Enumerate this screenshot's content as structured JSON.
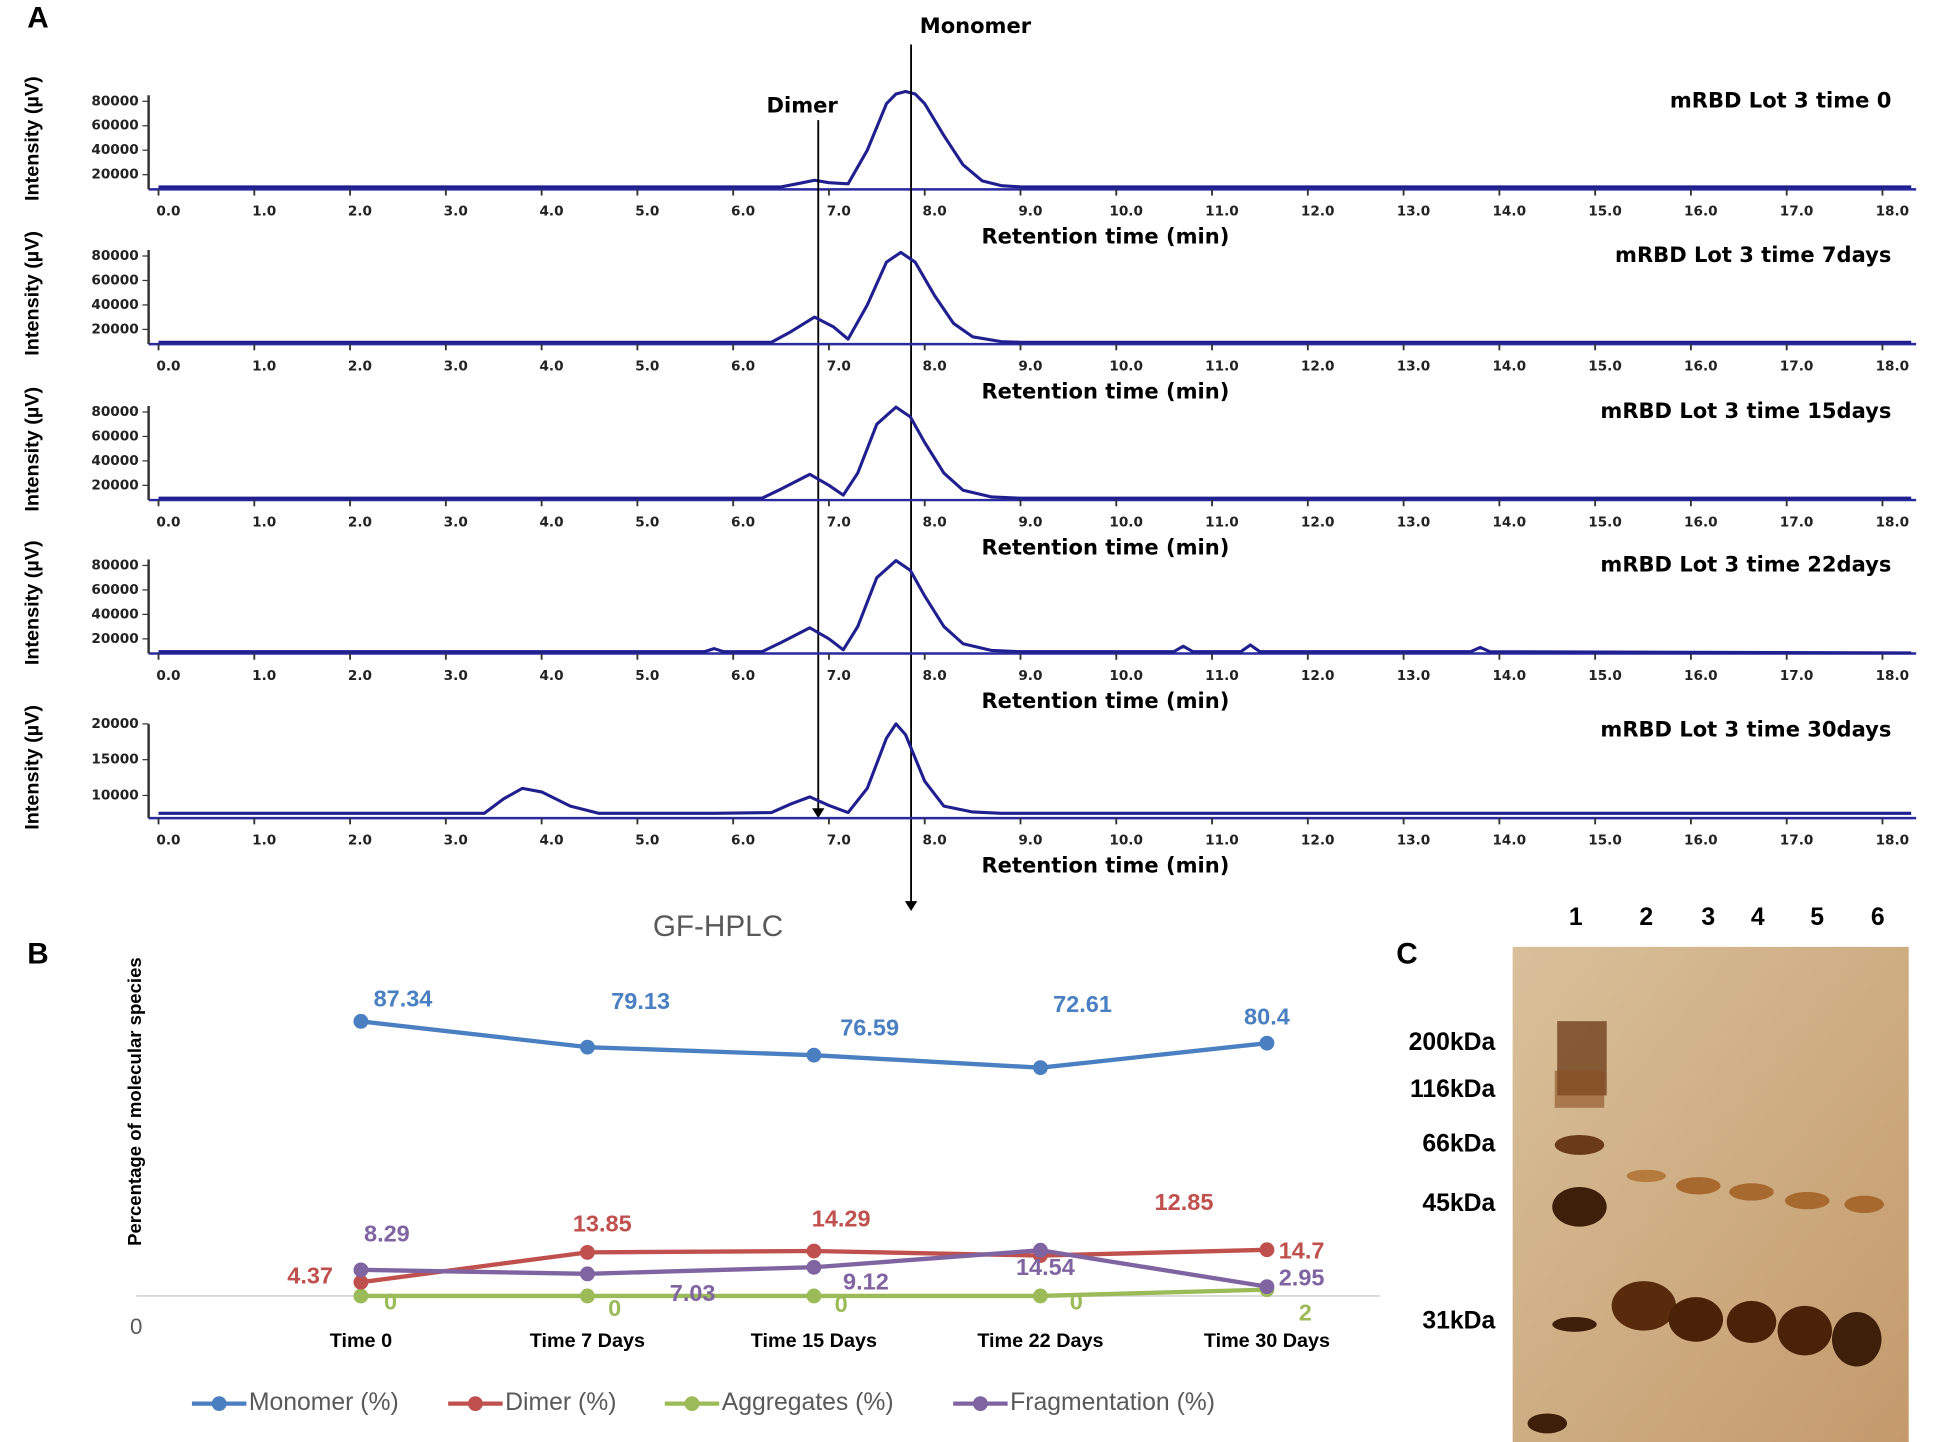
{
  "panel_labels": [
    "A",
    "B",
    "C"
  ],
  "chart_data": [
    {
      "type": "line",
      "title": "mRBD Lot 3 time 0",
      "xlabel": "Retention time (min)",
      "ylabel": "Intensity (µV)",
      "color": "#1f1f8f",
      "annotations": [
        "Dimer",
        "Monomer"
      ],
      "x": [
        0,
        6.5,
        6.7,
        6.85,
        7.0,
        7.2,
        7.4,
        7.6,
        7.7,
        7.8,
        7.9,
        8.0,
        8.2,
        8.4,
        8.6,
        8.8,
        9.0,
        18.3
      ],
      "values": [
        10000,
        10000,
        13000,
        15500,
        13500,
        12500,
        40000,
        78000,
        86000,
        88000,
        86000,
        78000,
        52000,
        28000,
        15000,
        11000,
        10000,
        10000
      ],
      "xlim": [
        0,
        18.3
      ],
      "ylim": [
        9000,
        95000
      ],
      "xticks": [
        {
          "value": 0,
          "label": "0.0"
        },
        {
          "value": 1,
          "label": "1.0"
        },
        {
          "value": 2,
          "label": "2.0"
        },
        {
          "value": 3,
          "label": "3.0"
        },
        {
          "value": 4,
          "label": "4.0"
        },
        {
          "value": 5,
          "label": "5.0"
        },
        {
          "value": 6,
          "label": "6.0"
        },
        {
          "value": 7,
          "label": "7.0"
        },
        {
          "value": 8,
          "label": "8.0"
        },
        {
          "value": 9,
          "label": "9.0"
        },
        {
          "value": 10,
          "label": "10.0"
        },
        {
          "value": 11,
          "label": "11.0"
        },
        {
          "value": 12,
          "label": "12.0"
        },
        {
          "value": 13,
          "label": "13.0"
        },
        {
          "value": 14,
          "label": "14.0"
        },
        {
          "value": 15,
          "label": "15.0"
        },
        {
          "value": 16,
          "label": "16.0"
        },
        {
          "value": 17,
          "label": "17.0"
        },
        {
          "value": 18,
          "label": "18.0"
        }
      ],
      "yticks": [
        20000,
        40000,
        60000,
        80000
      ]
    },
    {
      "type": "line",
      "title": "mRBD Lot 3 time 7days",
      "xlabel": "Retention time (min)",
      "ylabel": "Intensity (µV)",
      "color": "#1f1f8f",
      "x": [
        0,
        6.4,
        6.6,
        6.85,
        7.05,
        7.2,
        7.4,
        7.6,
        7.75,
        7.9,
        8.1,
        8.3,
        8.5,
        8.8,
        9.0,
        18.3
      ],
      "values": [
        9500,
        9500,
        18000,
        30000,
        22000,
        12000,
        40000,
        75000,
        83000,
        75000,
        48000,
        25000,
        14000,
        10000,
        9500,
        9500
      ],
      "xlim": [
        0,
        18.3
      ],
      "ylim": [
        9000,
        95000
      ],
      "xticks": [
        {
          "value": 0,
          "label": "0.0"
        },
        {
          "value": 1,
          "label": "1.0"
        },
        {
          "value": 2,
          "label": "2.0"
        },
        {
          "value": 3,
          "label": "3.0"
        },
        {
          "value": 4,
          "label": "4.0"
        },
        {
          "value": 5,
          "label": "5.0"
        },
        {
          "value": 6,
          "label": "6.0"
        },
        {
          "value": 7,
          "label": "7.0"
        },
        {
          "value": 8,
          "label": "8.0"
        },
        {
          "value": 9,
          "label": "9.0"
        },
        {
          "value": 10,
          "label": "10.0"
        },
        {
          "value": 11,
          "label": "11.0"
        },
        {
          "value": 12,
          "label": "12.0"
        },
        {
          "value": 13,
          "label": "13.0"
        },
        {
          "value": 14,
          "label": "14.0"
        },
        {
          "value": 15,
          "label": "15.0"
        },
        {
          "value": 16,
          "label": "16.0"
        },
        {
          "value": 17,
          "label": "17.0"
        },
        {
          "value": 18,
          "label": "18.0"
        }
      ],
      "yticks": [
        20000,
        40000,
        60000,
        80000
      ]
    },
    {
      "type": "line",
      "title": "mRBD Lot 3 time 15days",
      "xlabel": "Retention time (min)",
      "ylabel": "Intensity (µV)",
      "color": "#1f1f8f",
      "x": [
        0,
        6.3,
        6.5,
        6.8,
        7.0,
        7.15,
        7.3,
        7.5,
        7.7,
        7.85,
        8.0,
        8.2,
        8.4,
        8.7,
        9.0,
        18.3
      ],
      "values": [
        9500,
        9500,
        17000,
        29000,
        20000,
        12000,
        30000,
        70000,
        84000,
        76000,
        55000,
        30000,
        16000,
        10500,
        9500,
        9500
      ],
      "xlim": [
        0,
        18.3
      ],
      "ylim": [
        9000,
        95000
      ],
      "xticks": [
        {
          "value": 0,
          "label": "0.0"
        },
        {
          "value": 1,
          "label": "1.0"
        },
        {
          "value": 2,
          "label": "2.0"
        },
        {
          "value": 3,
          "label": "3.0"
        },
        {
          "value": 4,
          "label": "4.0"
        },
        {
          "value": 5,
          "label": "5.0"
        },
        {
          "value": 6,
          "label": "6.0"
        },
        {
          "value": 7,
          "label": "7.0"
        },
        {
          "value": 8,
          "label": "8.0"
        },
        {
          "value": 9,
          "label": "9.0"
        },
        {
          "value": 10,
          "label": "10.0"
        },
        {
          "value": 11,
          "label": "11.0"
        },
        {
          "value": 12,
          "label": "12.0"
        },
        {
          "value": 13,
          "label": "13.0"
        },
        {
          "value": 14,
          "label": "14.0"
        },
        {
          "value": 15,
          "label": "15.0"
        },
        {
          "value": 16,
          "label": "16.0"
        },
        {
          "value": 17,
          "label": "17.0"
        },
        {
          "value": 18,
          "label": "18.0"
        }
      ],
      "yticks": [
        20000,
        40000,
        60000,
        80000
      ]
    },
    {
      "type": "line",
      "title": "mRBD Lot 3 time 22days",
      "xlabel": "Retention time (min)",
      "ylabel": "Intensity (µV)",
      "color": "#1f1f8f",
      "x": [
        0,
        5.7,
        5.8,
        5.9,
        6.3,
        6.5,
        6.8,
        7.0,
        7.15,
        7.3,
        7.5,
        7.7,
        7.85,
        8.0,
        8.2,
        8.4,
        8.7,
        9.0,
        10.6,
        10.7,
        10.8,
        11.3,
        11.4,
        11.5,
        13.7,
        13.8,
        13.9,
        18.3
      ],
      "values": [
        9500,
        9500,
        12000,
        9500,
        9500,
        17000,
        29000,
        20000,
        11000,
        30000,
        70000,
        84000,
        76000,
        55000,
        30000,
        16000,
        10500,
        9500,
        9500,
        14000,
        9500,
        9500,
        15000,
        9500,
        9500,
        13000,
        9500,
        8500
      ],
      "xlim": [
        0,
        18.3
      ],
      "ylim": [
        9000,
        95000
      ],
      "xticks": [
        {
          "value": 0,
          "label": "0.0"
        },
        {
          "value": 1,
          "label": "1.0"
        },
        {
          "value": 2,
          "label": "2.0"
        },
        {
          "value": 3,
          "label": "3.0"
        },
        {
          "value": 4,
          "label": "4.0"
        },
        {
          "value": 5,
          "label": "5.0"
        },
        {
          "value": 6,
          "label": "6.0"
        },
        {
          "value": 7,
          "label": "7.0"
        },
        {
          "value": 8,
          "label": "8.0"
        },
        {
          "value": 9,
          "label": "9.0"
        },
        {
          "value": 10,
          "label": "10.0"
        },
        {
          "value": 11,
          "label": "11.0"
        },
        {
          "value": 12,
          "label": "12.0"
        },
        {
          "value": 13,
          "label": "13.0"
        },
        {
          "value": 14,
          "label": "14.0"
        },
        {
          "value": 15,
          "label": "15.0"
        },
        {
          "value": 16,
          "label": "16.0"
        },
        {
          "value": 17,
          "label": "17.0"
        },
        {
          "value": 18,
          "label": "18.0"
        }
      ],
      "yticks": [
        20000,
        40000,
        60000,
        80000
      ]
    },
    {
      "type": "line",
      "title": "mRBD Lot 3 time 30days",
      "xlabel": "Retention time (min)",
      "ylabel": "Intensity (µV)",
      "color": "#1f1f8f",
      "x": [
        0,
        3.4,
        3.6,
        3.8,
        4.0,
        4.3,
        4.6,
        5.8,
        6.4,
        6.6,
        6.8,
        7.0,
        7.2,
        7.4,
        7.6,
        7.7,
        7.8,
        8.0,
        8.2,
        8.5,
        8.8,
        18.3
      ],
      "values": [
        7500,
        7500,
        9500,
        11000,
        10500,
        8500,
        7500,
        7500,
        7600,
        8800,
        9800,
        8600,
        7600,
        11000,
        18000,
        20000,
        18500,
        12000,
        8500,
        7700,
        7500,
        7500
      ],
      "xlim": [
        0,
        18.3
      ],
      "ylim": [
        7000,
        21700
      ],
      "xticks": [
        {
          "value": 0,
          "label": "0.0"
        },
        {
          "value": 1,
          "label": "1.0"
        },
        {
          "value": 2,
          "label": "2.0"
        },
        {
          "value": 3,
          "label": "3.0"
        },
        {
          "value": 4,
          "label": "4.0"
        },
        {
          "value": 5,
          "label": "5.0"
        },
        {
          "value": 6,
          "label": "6.0"
        },
        {
          "value": 7,
          "label": "7.0"
        },
        {
          "value": 8,
          "label": "8.0"
        },
        {
          "value": 9,
          "label": "9.0"
        },
        {
          "value": 10,
          "label": "10.0"
        },
        {
          "value": 11,
          "label": "11.0"
        },
        {
          "value": 12,
          "label": "12.0"
        },
        {
          "value": 13,
          "label": "13.0"
        },
        {
          "value": 14,
          "label": "14.0"
        },
        {
          "value": 15,
          "label": "15.0"
        },
        {
          "value": 16,
          "label": "16.0"
        },
        {
          "value": 17,
          "label": "17.0"
        },
        {
          "value": 18,
          "label": "18.0"
        }
      ],
      "yticks": [
        10000,
        15000,
        20000
      ]
    },
    {
      "type": "line",
      "title": "GF-HPLC",
      "ylabel": "Percentage of molecular species",
      "legend": "bottom",
      "categories": [
        "Time 0",
        "Time 7 Days",
        "Time 15 Days",
        "Time 22 Days",
        "Time 30 Days"
      ],
      "series": [
        {
          "name": "Monomer (%)",
          "color": "#4a7fc1",
          "values": [
            87.34,
            79.13,
            76.59,
            72.61,
            80.4
          ]
        },
        {
          "name": "Dimer (%)",
          "color": "#c0504d",
          "values": [
            4.37,
            13.85,
            14.29,
            12.85,
            14.7
          ]
        },
        {
          "name": "Aggregates (%)",
          "color": "#9bbb59",
          "values": [
            0,
            0,
            0,
            0,
            2
          ]
        },
        {
          "name": "Fragmentation (%)",
          "color": "#8064a2",
          "values": [
            8.29,
            7.03,
            9.12,
            14.54,
            2.95
          ]
        }
      ],
      "ylim": [
        0,
        100
      ],
      "yticks": [
        0
      ]
    }
  ],
  "gel": {
    "lanes": [
      "1",
      "2",
      "3",
      "4",
      "5",
      "6"
    ],
    "markers": [
      "200kDa",
      "116kDa",
      "66kDa",
      "45kDa",
      "31kDa"
    ]
  }
}
